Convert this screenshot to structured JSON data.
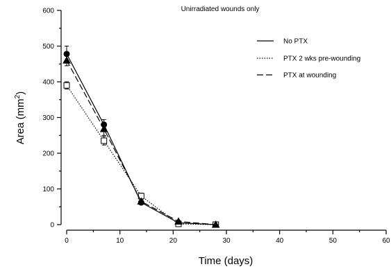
{
  "chart_data": {
    "type": "line",
    "title": "Unirradiated wounds only",
    "xlabel": "Time (days)",
    "ylabel": "Area (mm",
    "ylabel_sup": "2",
    "ylabel_end": ")",
    "xlim": [
      0,
      60
    ],
    "ylim": [
      0,
      600
    ],
    "x_ticks": [
      0,
      10,
      20,
      30,
      40,
      50,
      60
    ],
    "y_ticks": [
      0,
      100,
      200,
      300,
      400,
      500,
      600
    ],
    "grid": false,
    "legend_position": "top-right",
    "series": [
      {
        "name": "No PTX",
        "style": "solid",
        "marker": "filled-circle",
        "x": [
          0,
          7,
          14,
          21,
          28
        ],
        "y": [
          478,
          280,
          62,
          5,
          0
        ],
        "error": [
          22,
          14,
          5,
          2,
          0
        ]
      },
      {
        "name": "PTX 2 wks pre-wounding",
        "style": "dotted",
        "marker": "open-square",
        "x": [
          0,
          7,
          14,
          21,
          28
        ],
        "y": [
          390,
          235,
          80,
          2,
          0
        ],
        "error": [
          10,
          12,
          8,
          2,
          0
        ]
      },
      {
        "name": "PTX  at wounding",
        "style": "dashed",
        "marker": "filled-triangle",
        "x": [
          0,
          7,
          14,
          21,
          28
        ],
        "y": [
          460,
          268,
          65,
          9,
          0
        ],
        "error": [
          15,
          18,
          6,
          3,
          0
        ]
      }
    ]
  }
}
